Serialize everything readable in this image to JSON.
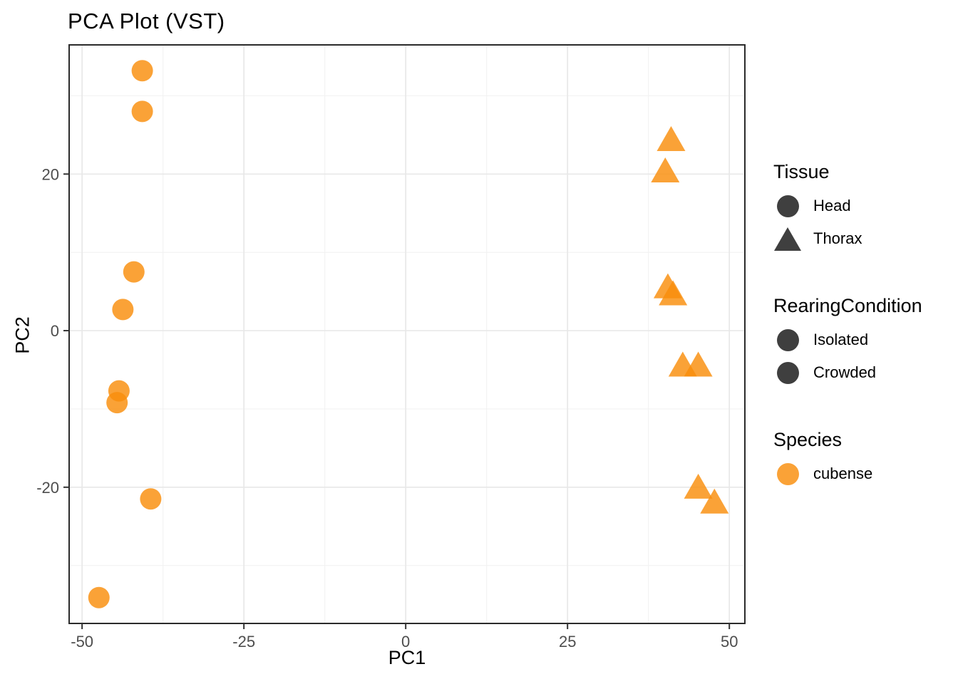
{
  "title": "PCA Plot (VST)",
  "axes": {
    "x_label": "PC1",
    "y_label": "PC2"
  },
  "colors": {
    "point_orange": "#F98D0B",
    "point_opacity": 0.82,
    "legend_key_dark": "#3F3F3F",
    "grid_major": "#E8E8E8",
    "grid_minor": "#F2F2F2",
    "panel_border": "#2B2B2B",
    "tick_mark": "#333333",
    "tick_label": "#4D4D4D",
    "background": "#FFFFFF"
  },
  "chart_data": {
    "type": "scatter",
    "title": "PCA Plot (VST)",
    "xlabel": "PC1",
    "ylabel": "PC2",
    "xlim": [
      -52.0,
      52.4
    ],
    "ylim": [
      -37.4,
      36.5
    ],
    "x_ticks": [
      -50,
      -25,
      0,
      25,
      50
    ],
    "y_ticks": [
      -20,
      0,
      20
    ],
    "x_minor_ticks": [
      -37.5,
      -12.5,
      12.5,
      37.5
    ],
    "y_minor_ticks": [
      -30,
      -10,
      10,
      30
    ],
    "grid": true,
    "legend_position": "right",
    "series": [
      {
        "name": "Head",
        "shape": "circle",
        "color": "#F98D0B",
        "points": [
          [
            -40.7,
            33.2
          ],
          [
            -40.7,
            28.0
          ],
          [
            -42.0,
            7.5
          ],
          [
            -43.7,
            2.7
          ],
          [
            -44.3,
            -7.7
          ],
          [
            -44.6,
            -9.2
          ],
          [
            -39.4,
            -21.5
          ],
          [
            -47.4,
            -34.1
          ]
        ]
      },
      {
        "name": "Thorax",
        "shape": "triangle",
        "color": "#F98D0B",
        "points": [
          [
            41.0,
            24.3
          ],
          [
            40.1,
            20.3
          ],
          [
            40.5,
            5.5
          ],
          [
            41.3,
            4.6
          ],
          [
            42.8,
            -4.5
          ],
          [
            45.2,
            -4.5
          ],
          [
            45.2,
            -20.1
          ],
          [
            47.7,
            -22.0
          ]
        ]
      }
    ]
  },
  "legend": {
    "groups": [
      {
        "title": "Tissue",
        "items": [
          {
            "label": "Head",
            "shape": "circle",
            "color": "#3F3F3F"
          },
          {
            "label": "Thorax",
            "shape": "triangle",
            "color": "#3F3F3F"
          }
        ]
      },
      {
        "title": "RearingCondition",
        "items": [
          {
            "label": "Isolated",
            "shape": "circle",
            "color": "#3F3F3F"
          },
          {
            "label": "Crowded",
            "shape": "circle",
            "color": "#3F3F3F"
          }
        ]
      },
      {
        "title": "Species",
        "items": [
          {
            "label": "cubense",
            "shape": "circle",
            "color": "#F9A03C"
          }
        ]
      }
    ]
  }
}
